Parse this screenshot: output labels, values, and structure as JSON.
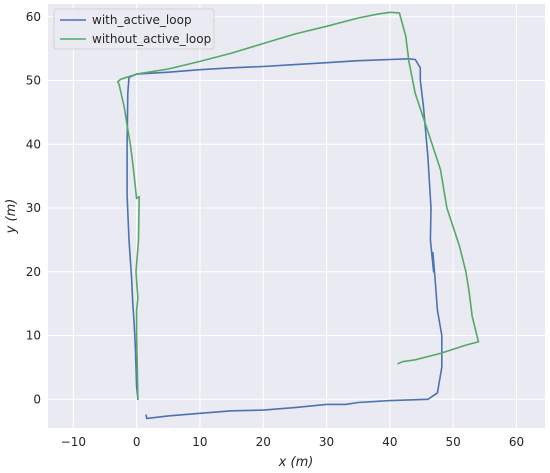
{
  "chart_data": {
    "type": "line",
    "xlabel": "x (m)",
    "ylabel": "y (m)",
    "xlim": [
      -14,
      64.5
    ],
    "ylim": [
      -4.5,
      62
    ],
    "xticks": [
      -10,
      0,
      10,
      20,
      30,
      40,
      50,
      60
    ],
    "yticks": [
      0,
      10,
      20,
      30,
      40,
      50,
      60
    ],
    "grid": true,
    "background": "#eaeaf2",
    "legend_position": "top-left",
    "series": [
      {
        "name": "with_active_loop",
        "color": "#4c72b0",
        "x": [
          1.5,
          1.6,
          5,
          10,
          15,
          20,
          25,
          30,
          33,
          35,
          40,
          43,
          46,
          47.5,
          48.2,
          48.2,
          47.5,
          47.2,
          46.8,
          46.9,
          46.4,
          46.5,
          46.0,
          45.3,
          44.8,
          44.8,
          44.0,
          43,
          40,
          35,
          30,
          25,
          20,
          15,
          10,
          5,
          0,
          -1.2,
          -1.4,
          -1.5,
          -1.5,
          -1.2,
          -0.8,
          -0.6,
          -0.4,
          -0.2,
          -0.1,
          0,
          0.2
        ],
        "y": [
          -2.5,
          -3.0,
          -2.6,
          -2.2,
          -1.8,
          -1.7,
          -1.3,
          -0.8,
          -0.8,
          -0.5,
          -0.2,
          -0.1,
          0,
          1,
          5,
          10,
          14,
          18,
          23,
          20,
          25,
          30,
          38,
          46,
          50,
          52,
          53.3,
          53.4,
          53.3,
          53.1,
          52.8,
          52.5,
          52.2,
          52.0,
          51.7,
          51.3,
          51.0,
          50.5,
          48,
          40,
          32,
          25,
          19,
          15,
          12,
          8,
          5,
          2,
          0
        ]
      },
      {
        "name": "without_active_loop",
        "color": "#55a868",
        "x": [
          0.2,
          0.1,
          0,
          0,
          0,
          0.2,
          0.1,
          -0.1,
          0.3,
          0.4,
          0,
          -0.6,
          -1.0,
          -1.5,
          -2.0,
          -2.8,
          -3.0,
          -2.5,
          0,
          5,
          10,
          15,
          20,
          25,
          30,
          35,
          38,
          40,
          41.5,
          42.5,
          43,
          44,
          46,
          48,
          49,
          51,
          52,
          52.5,
          53,
          54,
          53.5,
          52,
          48,
          44,
          42,
          41.3
        ],
        "y": [
          0,
          5,
          10,
          12,
          14,
          16,
          17,
          20,
          25,
          31.8,
          31.5,
          37,
          40,
          43,
          46,
          49.5,
          49.8,
          50.2,
          51,
          51.8,
          53,
          54.3,
          55.8,
          57.3,
          58.5,
          59.8,
          60.4,
          60.7,
          60.6,
          57,
          53,
          48,
          42,
          36,
          30,
          24,
          20,
          17,
          13,
          9,
          8.9,
          8.5,
          7.2,
          6.2,
          5.9,
          5.6
        ]
      }
    ]
  }
}
